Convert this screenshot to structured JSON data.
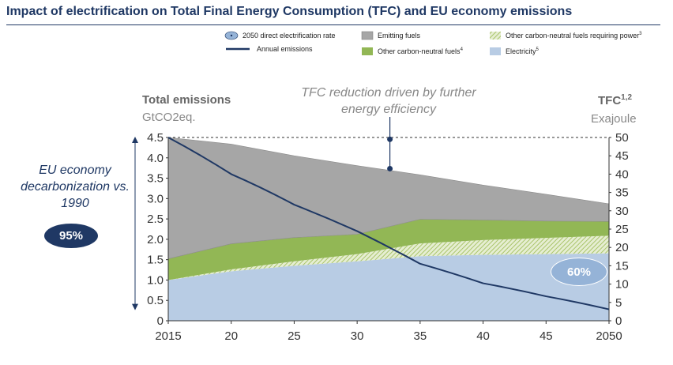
{
  "title": "Impact of electrification on Total Final Energy Consumption (TFC) and EU economy emissions",
  "legend": {
    "direct_rate": "2050 direct electrification rate",
    "emissions": "Annual emissions",
    "emitting": "Emitting fuels",
    "other_cn": "Other carbon-neutral fuels",
    "other_cn_sup": "4",
    "other_cn_power": "Other carbon-neutral fuels requiring power",
    "other_cn_power_sup": "3",
    "electricity": "Electricity",
    "electricity_sup": "5"
  },
  "left_axis": {
    "title": "Total emissions",
    "unit": "GtCO2eq."
  },
  "right_axis": {
    "title": "TFC",
    "title_sup": "1,2",
    "unit": "Exajoule"
  },
  "annotation": "TFC reduction driven by further energy efficiency",
  "decarbonization": {
    "text": "EU economy decarbonization vs. 1990",
    "value": "95%"
  },
  "electrification_rate": "60%",
  "colors": {
    "emitting": "#a6a6a6",
    "other_cn": "#92b755",
    "other_cn_power": "#c4d79b",
    "electricity": "#b8cce4",
    "emissions_line": "#1f3864",
    "oval_dark": "#1f3864",
    "oval_light": "#95b3d7"
  },
  "chart_data": {
    "type": "area",
    "x": [
      2015,
      2020,
      2025,
      2030,
      2035,
      2040,
      2045,
      2050
    ],
    "x_tick_labels": [
      "2015",
      "20",
      "25",
      "30",
      "35",
      "40",
      "45",
      "2050"
    ],
    "left_ylim": [
      0,
      4.5
    ],
    "left_ticks": [
      "0",
      "0.5",
      "1.0",
      "1.5",
      "2.0",
      "2.5",
      "3.0",
      "3.5",
      "4.0",
      "4.5"
    ],
    "right_ylim": [
      0,
      50
    ],
    "right_ticks": [
      "0",
      "5",
      "10",
      "15",
      "20",
      "25",
      "30",
      "35",
      "40",
      "45",
      "50"
    ],
    "grid": false,
    "legend_position": "top",
    "tfc_series": [
      {
        "name": "Electricity",
        "color_key": "electricity",
        "values": [
          11.1,
          13.5,
          15.0,
          16.2,
          17.6,
          18.0,
          18.2,
          18.4
        ]
      },
      {
        "name": "Other carbon-neutral fuels requiring power",
        "color_key": "other_cn_power",
        "values": [
          0.0,
          0.5,
          1.2,
          2.0,
          3.5,
          4.0,
          4.4,
          4.8
        ]
      },
      {
        "name": "Other carbon-neutral fuels",
        "color_key": "other_cn",
        "values": [
          5.8,
          7.0,
          6.5,
          5.4,
          6.6,
          5.5,
          4.6,
          3.9
        ]
      },
      {
        "name": "Emitting fuels",
        "color_key": "emitting",
        "values": [
          33.1,
          27.2,
          22.3,
          18.7,
          12.1,
          9.5,
          7.3,
          4.8
        ]
      }
    ],
    "emissions": {
      "name": "Annual emissions",
      "values": [
        4.5,
        3.6,
        2.85,
        2.2,
        1.4,
        0.92,
        0.6,
        0.28
      ]
    },
    "tfc_reduction_marker": {
      "x": 2032.6,
      "from_tfc": 49.5,
      "to_tfc": 41.5
    },
    "reference_line_tfc": 50
  }
}
